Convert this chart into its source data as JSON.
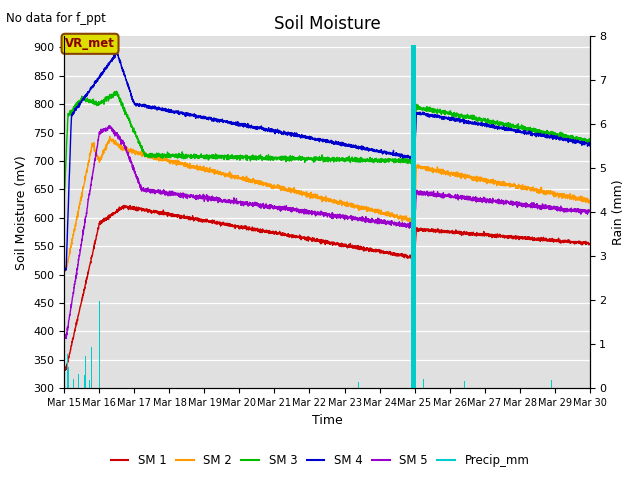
{
  "title": "Soil Moisture",
  "subtitle": "No data for f_ppt",
  "xlabel": "Time",
  "ylabel_left": "Soil Moisture (mV)",
  "ylabel_right": "Rain (mm)",
  "ylim_left": [
    300,
    920
  ],
  "ylim_right": [
    0.0,
    8.0
  ],
  "yticks_left": [
    300,
    350,
    400,
    450,
    500,
    550,
    600,
    650,
    700,
    750,
    800,
    850,
    900
  ],
  "yticks_right_vals": [
    0.0,
    1.0,
    2.0,
    3.0,
    4.0,
    5.0,
    6.0,
    7.0,
    8.0
  ],
  "xtick_labels": [
    "Mar 15",
    "Mar 16",
    "Mar 17",
    "Mar 18",
    "Mar 19",
    "Mar 20",
    "Mar 21",
    "Mar 22",
    "Mar 23",
    "Mar 24",
    "Mar 25",
    "Mar 26",
    "Mar 27",
    "Mar 28",
    "Mar 29",
    "Mar 30"
  ],
  "bg_color": "#e0e0e0",
  "grid_color": "#ffffff",
  "colors": {
    "SM1": "#cc0000",
    "SM2": "#ff9900",
    "SM3": "#00bb00",
    "SM4": "#0000cc",
    "SM5": "#9900cc",
    "Precip": "#00cccc"
  },
  "legend_labels": [
    "SM 1",
    "SM 2",
    "SM 3",
    "SM 4",
    "SM 5",
    "Precip_mm"
  ],
  "vr_met_text": "VR_met",
  "vr_met_bg": "#dddd00",
  "vr_met_edge": "#884400",
  "vr_met_textcolor": "#880000"
}
